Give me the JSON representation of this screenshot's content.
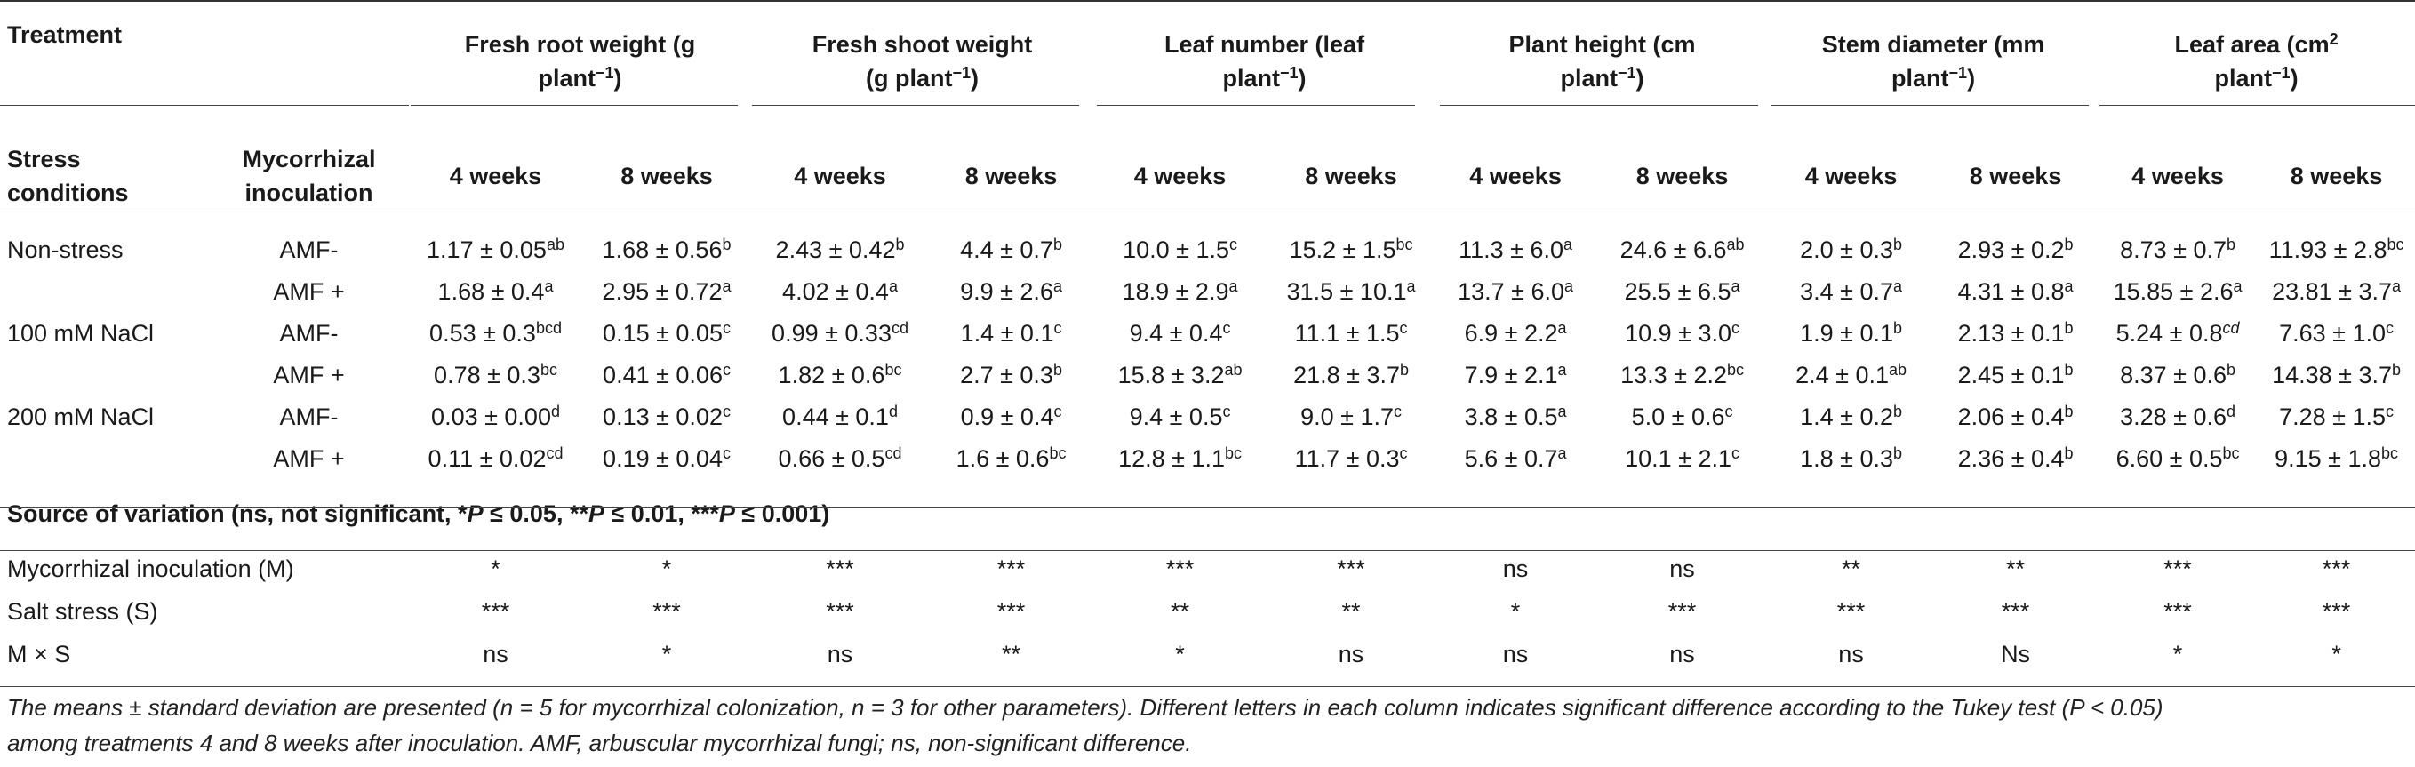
{
  "header": {
    "treatment": "Treatment",
    "groups": [
      {
        "line1": "Fresh root weight (g",
        "line2_pre": "plant",
        "sup": "−1",
        "line2_post": ")"
      },
      {
        "line1": "Fresh shoot weight",
        "line2_pre": "(g plant",
        "sup": "−1",
        "line2_post": ")"
      },
      {
        "line1": "Leaf number (leaf",
        "line2_pre": "plant",
        "sup": "−1",
        "line2_post": ")"
      },
      {
        "line1": "Plant height (cm",
        "line2_pre": "plant",
        "sup": "−1",
        "line2_post": ")"
      },
      {
        "line1": "Stem diameter (mm",
        "line2_pre": "plant",
        "sup": "−1",
        "line2_post": ")"
      },
      {
        "line1_pre": "Leaf area (cm",
        "line1_sup": "2",
        "line2_pre": "plant",
        "sup": "−1",
        "line2_post": ")"
      }
    ],
    "stress_line1": "Stress",
    "stress_line2": "conditions",
    "myco_line1": "Mycorrhizal",
    "myco_line2": "inoculation",
    "weeks": [
      "4 weeks",
      "8 weeks"
    ]
  },
  "rows": [
    {
      "stress": "Non-stress",
      "amf": "AMF-",
      "cells": [
        {
          "v": "1.17 ± 0.05",
          "s": "ab"
        },
        {
          "v": "1.68 ± 0.56",
          "s": "b"
        },
        {
          "v": "2.43 ± 0.42",
          "s": "b"
        },
        {
          "v": "4.4 ± 0.7",
          "s": "b"
        },
        {
          "v": "10.0 ± 1.5",
          "s": "c"
        },
        {
          "v": "15.2 ± 1.5",
          "s": "bc"
        },
        {
          "v": "11.3 ± 6.0",
          "s": "a"
        },
        {
          "v": "24.6 ± 6.6",
          "s": "ab"
        },
        {
          "v": "2.0 ± 0.3",
          "s": "b"
        },
        {
          "v": "2.93 ± 0.2",
          "s": "b"
        },
        {
          "v": "8.73 ± 0.7",
          "s": "b"
        },
        {
          "v": "11.93 ± 2.8",
          "s": "bc"
        }
      ]
    },
    {
      "stress": "",
      "amf": "AMF +",
      "cells": [
        {
          "v": "1.68 ± 0.4",
          "s": "a"
        },
        {
          "v": "2.95 ± 0.72",
          "s": "a"
        },
        {
          "v": "4.02 ± 0.4",
          "s": "a"
        },
        {
          "v": "9.9 ± 2.6",
          "s": "a"
        },
        {
          "v": "18.9 ± 2.9",
          "s": "a"
        },
        {
          "v": "31.5 ± 10.1",
          "s": "a"
        },
        {
          "v": "13.7 ± 6.0",
          "s": "a"
        },
        {
          "v": "25.5 ± 6.5",
          "s": "a"
        },
        {
          "v": "3.4 ± 0.7",
          "s": "a"
        },
        {
          "v": "4.31 ± 0.8",
          "s": "a"
        },
        {
          "v": "15.85 ± 2.6",
          "s": "a"
        },
        {
          "v": "23.81 ± 3.7",
          "s": "a"
        }
      ]
    },
    {
      "stress": "100 mM NaCl",
      "amf": "AMF-",
      "cells": [
        {
          "v": "0.53 ± 0.3",
          "s": "bcd"
        },
        {
          "v": "0.15 ± 0.05",
          "s": "c"
        },
        {
          "v": "0.99 ± 0.33",
          "s": "cd"
        },
        {
          "v": "1.4 ± 0.1",
          "s": "c"
        },
        {
          "v": "9.4 ± 0.4",
          "s": "c"
        },
        {
          "v": "11.1 ± 1.5",
          "s": "c"
        },
        {
          "v": "6.9 ± 2.2",
          "s": "a"
        },
        {
          "v": "10.9 ± 3.0",
          "s": "c"
        },
        {
          "v": "1.9 ± 0.1",
          "s": "b"
        },
        {
          "v": "2.13 ± 0.1",
          "s": "b"
        },
        {
          "v": "5.24 ± 0.8",
          "s": "cd",
          "it": true
        },
        {
          "v": "7.63 ± 1.0",
          "s": "c"
        }
      ]
    },
    {
      "stress": "",
      "amf": "AMF +",
      "cells": [
        {
          "v": "0.78 ± 0.3",
          "s": "bc"
        },
        {
          "v": "0.41 ± 0.06",
          "s": "c"
        },
        {
          "v": "1.82 ± 0.6",
          "s": "bc"
        },
        {
          "v": "2.7 ± 0.3",
          "s": "b"
        },
        {
          "v": "15.8 ± 3.2",
          "s": "ab"
        },
        {
          "v": "21.8 ± 3.7",
          "s": "b"
        },
        {
          "v": "7.9 ± 2.1",
          "s": "a"
        },
        {
          "v": "13.3 ± 2.2",
          "s": "bc"
        },
        {
          "v": "2.4 ± 0.1",
          "s": "ab"
        },
        {
          "v": "2.45 ± 0.1",
          "s": "b"
        },
        {
          "v": "8.37 ± 0.6",
          "s": "b"
        },
        {
          "v": "14.38 ± 3.7",
          "s": "b"
        }
      ]
    },
    {
      "stress": "200 mM NaCl",
      "amf": "AMF-",
      "cells": [
        {
          "v": "0.03 ± 0.00",
          "s": "d"
        },
        {
          "v": "0.13 ± 0.02",
          "s": "c"
        },
        {
          "v": "0.44 ± 0.1",
          "s": "d"
        },
        {
          "v": "0.9 ± 0.4",
          "s": "c"
        },
        {
          "v": "9.4 ± 0.5",
          "s": "c"
        },
        {
          "v": "9.0 ± 1.7",
          "s": "c"
        },
        {
          "v": "3.8 ± 0.5",
          "s": "a"
        },
        {
          "v": "5.0 ± 0.6",
          "s": "c"
        },
        {
          "v": "1.4 ± 0.2",
          "s": "b"
        },
        {
          "v": "2.06 ± 0.4",
          "s": "b"
        },
        {
          "v": "3.28 ± 0.6",
          "s": "d"
        },
        {
          "v": "7.28 ± 1.5",
          "s": "c"
        }
      ]
    },
    {
      "stress": "",
      "amf": "AMF +",
      "cells": [
        {
          "v": "0.11 ± 0.02",
          "s": "cd"
        },
        {
          "v": "0.19 ± 0.04",
          "s": "c"
        },
        {
          "v": "0.66 ± 0.5",
          "s": "cd"
        },
        {
          "v": "1.6 ± 0.6",
          "s": "bc"
        },
        {
          "v": "12.8 ± 1.1",
          "s": "bc"
        },
        {
          "v": "11.7 ± 0.3",
          "s": "c"
        },
        {
          "v": "5.6 ± 0.7",
          "s": "a"
        },
        {
          "v": "10.1 ± 2.1",
          "s": "c"
        },
        {
          "v": "1.8 ± 0.3",
          "s": "b"
        },
        {
          "v": "2.36 ± 0.4",
          "s": "b"
        },
        {
          "v": "6.60 ± 0.5",
          "s": "bc"
        },
        {
          "v": "9.15 ± 1.8",
          "s": "bc"
        }
      ]
    }
  ],
  "source": {
    "pre": "Source of variation (ns, not significant, *",
    "p1": "P",
    "mid1": " ≤ 0.05, **",
    "p2": "P",
    "mid2": " ≤ 0.01, ***",
    "p3": "P",
    "post": " ≤ 0.001)"
  },
  "variation": [
    {
      "label": "Mycorrhizal inoculation (M)",
      "cells": [
        "*",
        "*",
        "***",
        "***",
        "***",
        "***",
        "ns",
        "ns",
        "**",
        "**",
        "***",
        "***"
      ]
    },
    {
      "label": "Salt stress (S)",
      "cells": [
        "***",
        "***",
        "***",
        "***",
        "**",
        "**",
        "*",
        "***",
        "***",
        "***",
        "***",
        "***"
      ]
    },
    {
      "label": "M × S",
      "cells": [
        "ns",
        "*",
        "ns",
        "**",
        "*",
        "ns",
        "ns",
        "ns",
        "ns",
        "Ns",
        "*",
        "*"
      ]
    }
  ],
  "footnote": {
    "line1": "The means ± standard deviation are presented (n = 5 for mycorrhizal colonization, n = 3 for other parameters). Different letters in each column indicates significant difference according to the Tukey test (P < 0.05)",
    "line2": "among treatments 4 and 8 weeks after inoculation. AMF, arbuscular mycorrhizal fungi; ns, non-significant difference."
  }
}
